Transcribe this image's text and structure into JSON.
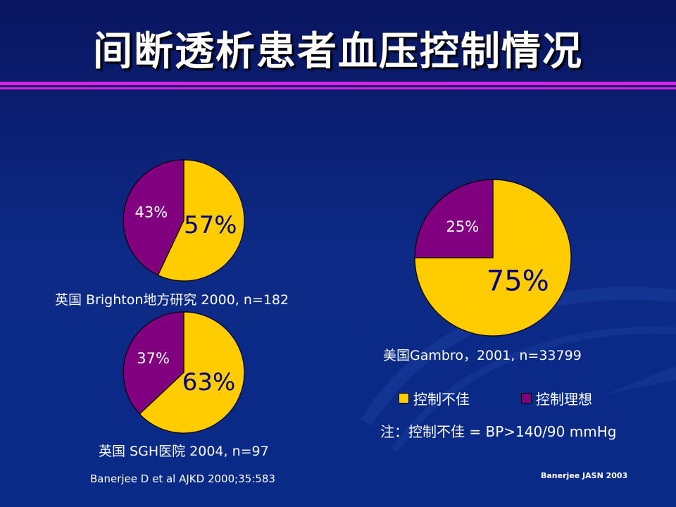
{
  "title": "间断透析患者血压控制情况",
  "colors": {
    "poor": "#ffcc00",
    "ideal": "#800080",
    "rule": "#e020e0"
  },
  "chart_data": [
    {
      "type": "pie",
      "caption": "英国 Brighton地方研究 2000, n=182",
      "slices": [
        {
          "name": "控制不佳",
          "value": 57,
          "label": "57%"
        },
        {
          "name": "控制理想",
          "value": 43,
          "label": "43%"
        }
      ]
    },
    {
      "type": "pie",
      "caption": "英国 SGH医院 2004, n=97",
      "slices": [
        {
          "name": "控制不佳",
          "value": 63,
          "label": "63%"
        },
        {
          "name": "控制理想",
          "value": 37,
          "label": "37%"
        }
      ]
    },
    {
      "type": "pie",
      "caption": "美国Gambro，2001, n=33799",
      "slices": [
        {
          "name": "控制不佳",
          "value": 75,
          "label": "75%"
        },
        {
          "name": "控制理想",
          "value": 25,
          "label": "25%"
        }
      ]
    }
  ],
  "legend": {
    "poor_label": "控制不佳",
    "ideal_label": "控制理想"
  },
  "note": "注：控制不佳 = BP>140/90 mmHg",
  "references": {
    "left": "Banerjee D et al AJKD 2000;35:583",
    "right": "Banerjee JASN 2003"
  }
}
